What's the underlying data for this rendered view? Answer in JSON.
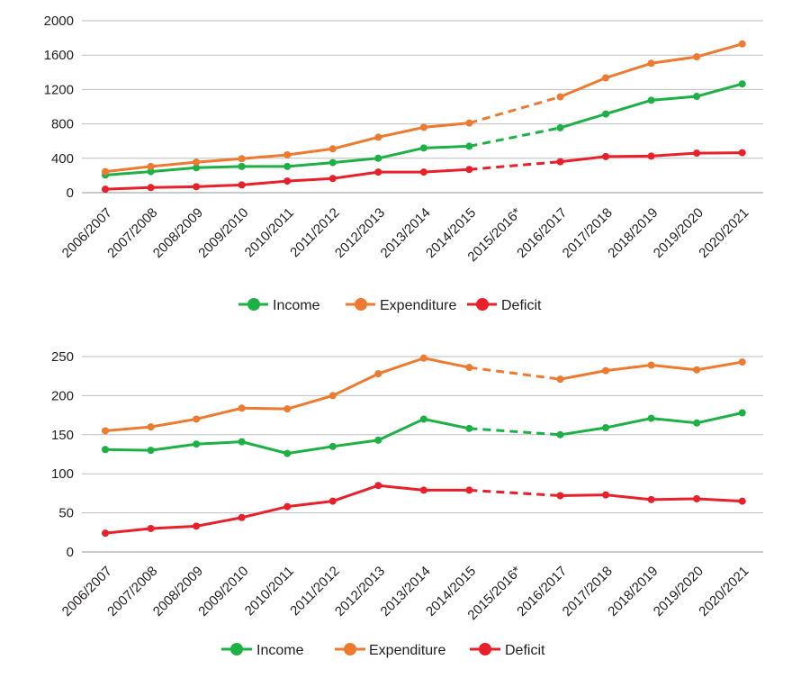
{
  "colors": {
    "income": "#1db145",
    "expenditure": "#ee7a30",
    "deficit": "#e8202a",
    "grid": "#bcbec0",
    "axis": "#939598",
    "text": "#231f20"
  },
  "chart_data": [
    {
      "type": "line",
      "categories": [
        "2006/2007",
        "2007/2008",
        "2008/2009",
        "2009/2010",
        "2010/2011",
        "2011/2012",
        "2012/2013",
        "2013/2014",
        "2014/2015",
        "2015/2016*",
        "2016/2017",
        "2017/2018",
        "2018/2019",
        "2019/2020",
        "2020/2021"
      ],
      "yticks": [
        0,
        400,
        800,
        1200,
        1600,
        2000
      ],
      "ylim": [
        0,
        2000
      ],
      "grid": true,
      "legend_position": "bottom",
      "dashed_between": [
        "2014/2015",
        "2016/2017"
      ],
      "series": [
        {
          "name": "Income",
          "color_key": "income",
          "values": [
            205,
            245,
            290,
            305,
            305,
            350,
            400,
            520,
            540,
            null,
            755,
            915,
            1075,
            1120,
            1265
          ]
        },
        {
          "name": "Expenditure",
          "color_key": "expenditure",
          "values": [
            245,
            305,
            355,
            395,
            440,
            510,
            645,
            760,
            810,
            null,
            1115,
            1335,
            1505,
            1580,
            1730
          ]
        },
        {
          "name": "Deficit",
          "color_key": "deficit",
          "values": [
            40,
            60,
            70,
            90,
            135,
            165,
            240,
            240,
            270,
            null,
            360,
            420,
            425,
            460,
            465
          ]
        }
      ]
    },
    {
      "type": "line",
      "categories": [
        "2006/2007",
        "2007/2008",
        "2008/2009",
        "2009/2010",
        "2010/2011",
        "2011/2012",
        "2012/2013",
        "2013/2014",
        "2014/2015",
        "2015/2016*",
        "2016/2017",
        "2017/2018",
        "2018/2019",
        "2019/2020",
        "2020/2021"
      ],
      "yticks": [
        0,
        50,
        100,
        150,
        200,
        250
      ],
      "ylim": [
        0,
        250
      ],
      "grid": true,
      "legend_position": "bottom",
      "dashed_between": [
        "2014/2015",
        "2016/2017"
      ],
      "series": [
        {
          "name": "Income",
          "color_key": "income",
          "values": [
            131,
            130,
            138,
            141,
            126,
            135,
            143,
            170,
            158,
            null,
            150,
            159,
            171,
            165,
            178
          ]
        },
        {
          "name": "Expenditure",
          "color_key": "expenditure",
          "values": [
            155,
            160,
            170,
            184,
            183,
            200,
            228,
            248,
            236,
            null,
            221,
            232,
            239,
            233,
            243
          ]
        },
        {
          "name": "Deficit",
          "color_key": "deficit",
          "values": [
            24,
            30,
            33,
            44,
            58,
            65,
            85,
            79,
            79,
            null,
            72,
            73,
            67,
            68,
            65
          ]
        }
      ]
    }
  ]
}
